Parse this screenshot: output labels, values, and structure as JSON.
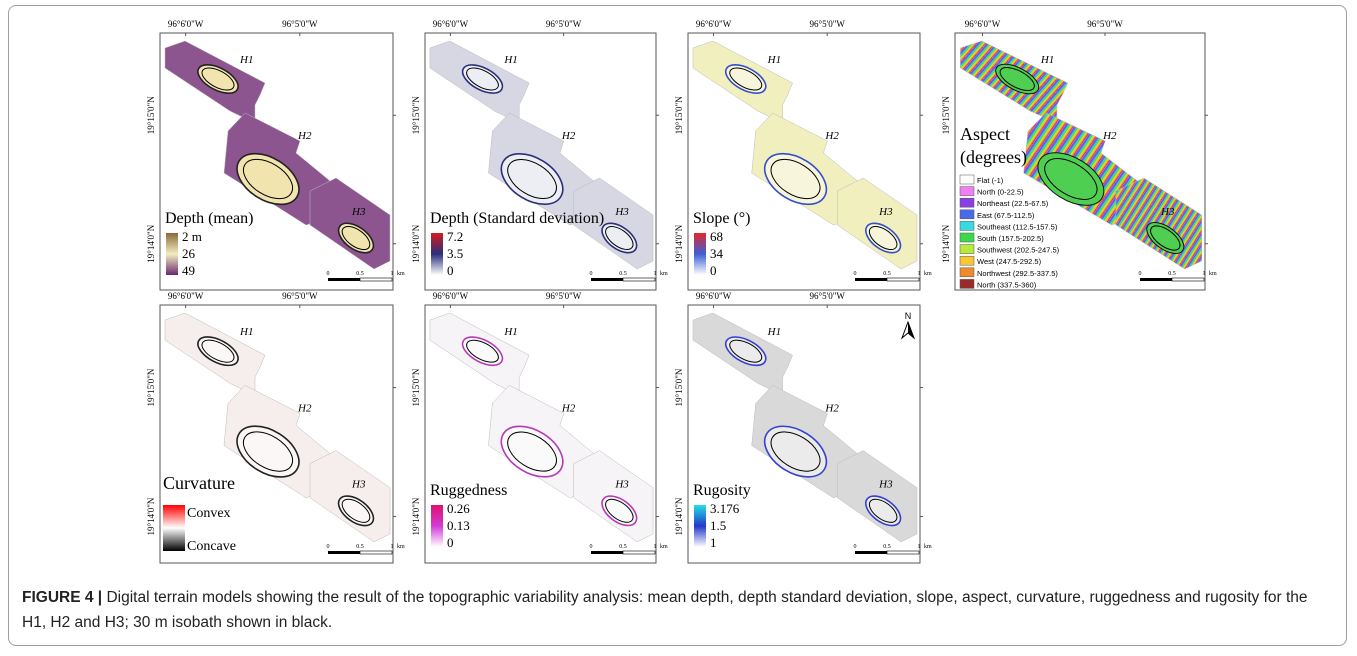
{
  "figure": {
    "panels": [
      {
        "lon": [
          "96°6'0\"W",
          "96°5'0\"W"
        ],
        "lat": [
          "19°15'0\"N",
          "19°14'0\"N"
        ],
        "hotspots": [
          "H1",
          "H2",
          "H3"
        ],
        "legend_title": "Depth (mean)",
        "legend_labels": [
          "2 m",
          "26",
          "49"
        ],
        "legend_colors": [
          "#8b6a3a",
          "#f3ecc0",
          "#6a2a6e"
        ],
        "fill": "#8c5590",
        "inner": "#f1e4ae",
        "edge": "#222",
        "scale": [
          "0",
          "0.5",
          "1",
          "km"
        ]
      },
      {
        "lon": [
          "96°6'0\"W",
          "96°5'0\"W"
        ],
        "lat": [
          "19°15'0\"N",
          "19°14'0\"N"
        ],
        "hotspots": [
          "H1",
          "H2",
          "H3"
        ],
        "legend_title": "Depth (Standard deviation)",
        "legend_labels": [
          "7.2",
          "3.5",
          "0"
        ],
        "legend_colors": [
          "#d7191c",
          "#2b2f7a",
          "#ffffff"
        ],
        "fill": "#d6d7e2",
        "inner": "#eceef4",
        "edge": "#2b2f7a",
        "scale": [
          "0",
          "0.5",
          "1",
          "km"
        ]
      },
      {
        "lon": [
          "96°6'0\"W",
          "96°5'0\"W"
        ],
        "lat": [
          "19°15'0\"N",
          "19°14'0\"N"
        ],
        "hotspots": [
          "H1",
          "H2",
          "H3"
        ],
        "legend_title": "Slope (°)",
        "legend_labels": [
          "68",
          "34",
          "0"
        ],
        "legend_colors": [
          "#e3262a",
          "#3e5fd6",
          "#ffffff"
        ],
        "fill": "#f2efbf",
        "inner": "#f7f5dc",
        "edge": "#3350c8",
        "scale": [
          "0",
          "0.5",
          "1",
          "km"
        ]
      },
      {
        "lon": [
          "96°6'0\"W",
          "96°5'0\"W"
        ],
        "lat": [
          "19°15'0\"N",
          "19°14'0\"N"
        ],
        "hotspots": [
          "H1",
          "H2",
          "H3"
        ],
        "legend_title": [
          "Aspect",
          "(degrees)"
        ],
        "legend_items": [
          "Flat (-1)",
          "North (0-22.5)",
          "Northeast (22.5-67.5)",
          "East (67.5-112.5)",
          "Southeast (112.5-157.5)",
          "South (157.5-202.5)",
          "Southwest (202.5-247.5)",
          "West (247.5-292.5)",
          "Northwest (292.5-337.5)",
          "North (337.5-360)"
        ],
        "legend_colors": [
          "#ffffff",
          "#f27ef5",
          "#8a3ee6",
          "#4a6ae8",
          "#38d9e0",
          "#3bd94a",
          "#b8ea3a",
          "#f7c737",
          "#ee8a2e",
          "#9a2a2a"
        ],
        "fill": "#7a5ad8",
        "inner": "#4fcf52",
        "edge": "#111",
        "scale": [
          "0",
          "0.5",
          "1",
          "km"
        ]
      },
      {
        "lon": [
          "96°6'0\"W",
          "96°5'0\"W"
        ],
        "lat": [
          "19°15'0\"N",
          "19°14'0\"N"
        ],
        "hotspots": [
          "H1",
          "H2",
          "H3"
        ],
        "legend_title": "Curvature",
        "legend_labels": [
          "Convex",
          "Concave"
        ],
        "legend_colors": [
          "#ff0000",
          "#ffffff",
          "#000000"
        ],
        "fill": "#f6eeec",
        "inner": "#fbf7f6",
        "edge": "#222",
        "scale": [
          "0",
          "0.5",
          "1",
          "km"
        ]
      },
      {
        "lon": [
          "96°6'0\"W",
          "96°5'0\"W"
        ],
        "lat": [
          "19°15'0\"N",
          "19°14'0\"N"
        ],
        "hotspots": [
          "H1",
          "H2",
          "H3"
        ],
        "legend_title": "Ruggedness",
        "legend_labels": [
          "0.26",
          "0.13",
          "0"
        ],
        "legend_colors": [
          "#e0106a",
          "#d23cd8",
          "#ffffff"
        ],
        "fill": "#f6f4f6",
        "inner": "#fbfafb",
        "edge": "#b43ab8",
        "scale": [
          "0",
          "0.5",
          "1",
          "km"
        ]
      },
      {
        "lon": [
          "96°6'0\"W",
          "96°5'0\"W"
        ],
        "lat": [
          "19°15'0\"N",
          "19°14'0\"N"
        ],
        "hotspots": [
          "H1",
          "H2",
          "H3"
        ],
        "legend_title": "Rugosity",
        "legend_labels": [
          "3.176",
          "1.5",
          "1"
        ],
        "legend_colors": [
          "#22e0e8",
          "#2438c8",
          "#ffffff"
        ],
        "fill": "#d9d9d9",
        "inner": "#ebebeb",
        "edge": "#3340d0",
        "scale": [
          "0",
          "0.5",
          "1",
          "km"
        ],
        "north": "N"
      }
    ],
    "caption": {
      "label": "FIGURE 4 |",
      "text": "Digital terrain models showing the result of the topographic variability analysis: mean depth, depth standard deviation, slope, aspect, curvature, ruggedness and rugosity for the H1, H2 and H3; 30 m isobath shown in black."
    }
  }
}
